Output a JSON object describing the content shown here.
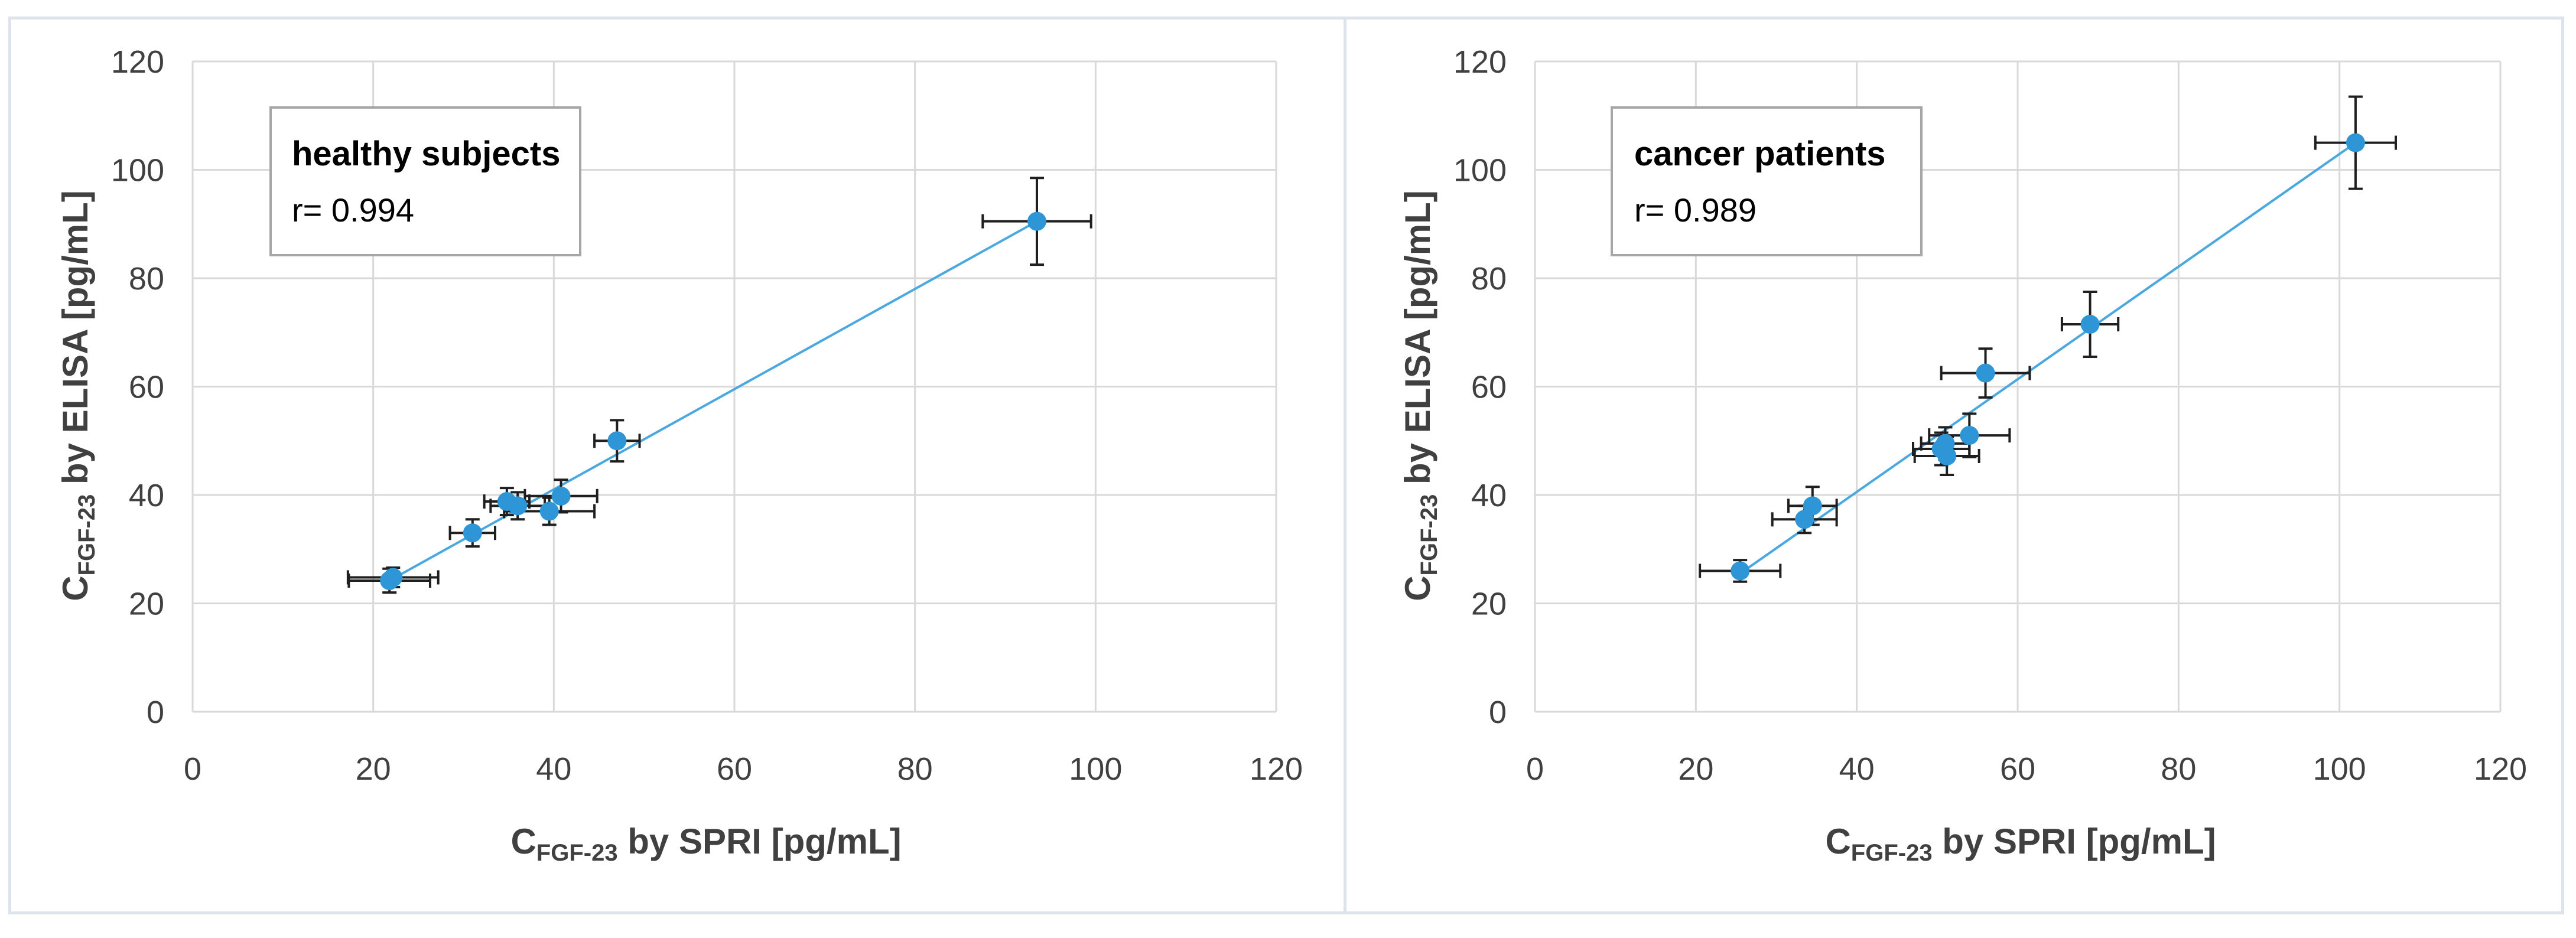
{
  "chart_data": [
    {
      "type": "scatter",
      "title": "",
      "legend_title": "healthy subjects",
      "legend_value": "r= 0.994",
      "xlabel": {
        "prefix": "C",
        "subscript": "FGF-23",
        "suffix": " by SPRI [pg/mL]"
      },
      "ylabel": {
        "prefix": "C",
        "subscript": "FGF-23",
        "suffix": " by ELISA [pg/mL]"
      },
      "xlim": [
        0,
        120
      ],
      "ylim": [
        0,
        120
      ],
      "xticks": [
        0,
        20,
        40,
        60,
        80,
        100,
        120
      ],
      "yticks": [
        0,
        20,
        40,
        60,
        80,
        100,
        120
      ],
      "grid": true,
      "points": [
        {
          "x": 21.8,
          "y": 24.2,
          "xerr": 4.5,
          "yerr": 2.2
        },
        {
          "x": 22.2,
          "y": 24.8,
          "xerr": 5.0,
          "yerr": 1.8
        },
        {
          "x": 31,
          "y": 33,
          "xerr": 2.5,
          "yerr": 2.5
        },
        {
          "x": 34.8,
          "y": 38.8,
          "xerr": 2.5,
          "yerr": 2.5
        },
        {
          "x": 36,
          "y": 38,
          "xerr": 3.0,
          "yerr": 2.5
        },
        {
          "x": 39.5,
          "y": 37,
          "xerr": 5.0,
          "yerr": 2.5
        },
        {
          "x": 40.8,
          "y": 39.8,
          "xerr": 4.0,
          "yerr": 3.0
        },
        {
          "x": 47,
          "y": 50,
          "xerr": 2.5,
          "yerr": 3.8
        },
        {
          "x": 93.5,
          "y": 90.5,
          "xerr": 6.0,
          "yerr": 8.0
        }
      ],
      "trendline": {
        "x": [
          21.8,
          93.5
        ],
        "y": [
          24.2,
          90.5
        ]
      },
      "colors": {
        "marker": "#2e96d6",
        "line": "#4aa8e0",
        "errorbar": "#1f1f1f",
        "grid": "#d9d9d9"
      }
    },
    {
      "type": "scatter",
      "title": "",
      "legend_title": "cancer patients",
      "legend_value": "r= 0.989",
      "xlabel": {
        "prefix": "C",
        "subscript": "FGF-23",
        "suffix": " by SPRI [pg/mL]"
      },
      "ylabel": {
        "prefix": "C",
        "subscript": "FGF-23",
        "suffix": " by ELISA [pg/mL]"
      },
      "xlim": [
        0,
        120
      ],
      "ylim": [
        0,
        120
      ],
      "xticks": [
        0,
        20,
        40,
        60,
        80,
        100,
        120
      ],
      "yticks": [
        0,
        20,
        40,
        60,
        80,
        100,
        120
      ],
      "grid": true,
      "points": [
        {
          "x": 25.5,
          "y": 26,
          "xerr": 5.0,
          "yerr": 2.0
        },
        {
          "x": 33.5,
          "y": 35.5,
          "xerr": 4.0,
          "yerr": 2.5
        },
        {
          "x": 34.5,
          "y": 38,
          "xerr": 3.0,
          "yerr": 3.5
        },
        {
          "x": 50.5,
          "y": 48.5,
          "xerr": 3.5,
          "yerr": 3.0
        },
        {
          "x": 51,
          "y": 49.5,
          "xerr": 3.0,
          "yerr": 3.0
        },
        {
          "x": 51.2,
          "y": 47.2,
          "xerr": 4.0,
          "yerr": 3.5
        },
        {
          "x": 54,
          "y": 51,
          "xerr": 5.0,
          "yerr": 4.0
        },
        {
          "x": 56,
          "y": 62.5,
          "xerr": 5.5,
          "yerr": 4.5
        },
        {
          "x": 69,
          "y": 71.5,
          "xerr": 3.5,
          "yerr": 6.0
        },
        {
          "x": 102,
          "y": 105,
          "xerr": 5.0,
          "yerr": 8.5
        }
      ],
      "trendline": {
        "x": [
          25.5,
          102
        ],
        "y": [
          25.5,
          105
        ]
      },
      "colors": {
        "marker": "#2e96d6",
        "line": "#4aa8e0",
        "errorbar": "#1f1f1f",
        "grid": "#d9d9d9"
      }
    }
  ]
}
